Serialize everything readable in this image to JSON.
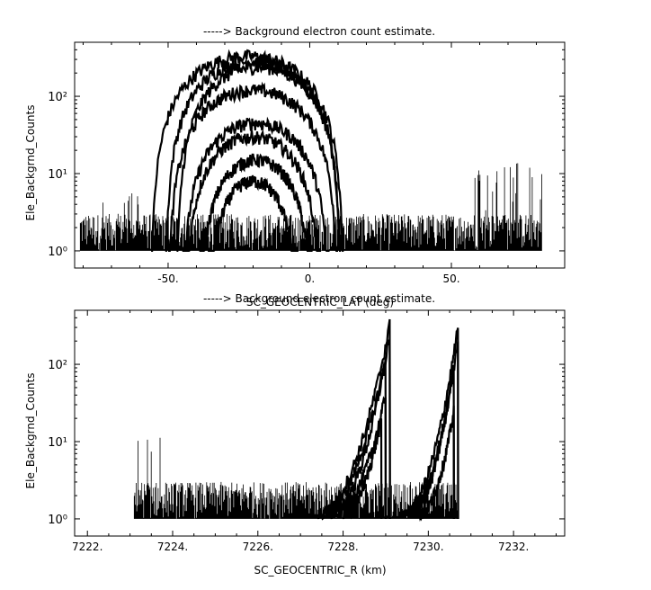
{
  "chart_data": [
    {
      "type": "line",
      "title": "-----> Background electron count estimate.",
      "xlabel": "SC_GEOCENTRIC_LAT (deg)",
      "ylabel": "Ele_Backgrnd_Counts",
      "xlim": [
        -83,
        90
      ],
      "ylim": [
        0.6,
        500
      ],
      "yscale": "log",
      "xticks": [
        -50,
        0,
        50
      ],
      "xtick_labels": [
        "-50.",
        "0.",
        "50."
      ],
      "yticks": [
        1,
        10,
        100
      ],
      "ytick_labels": [
        "10⁰",
        "10¹",
        "10²"
      ],
      "noise_x_range": [
        -81,
        82
      ],
      "noise_floor": [
        1,
        3
      ],
      "noise_bursts": [
        {
          "x": [
            -81,
            -60
          ],
          "peak": 6
        },
        {
          "x": [
            57,
            82
          ],
          "peak": 15
        }
      ],
      "series": [
        {
          "center": -22,
          "peak": 330,
          "half_width": 34
        },
        {
          "center": -20,
          "peak": 280,
          "half_width": 31
        },
        {
          "center": -18,
          "peak": 240,
          "half_width": 29
        },
        {
          "center": -20,
          "peak": 120,
          "half_width": 30
        },
        {
          "center": -19,
          "peak": 45,
          "half_width": 26
        },
        {
          "center": -20,
          "peak": 30,
          "half_width": 24
        },
        {
          "center": -19,
          "peak": 15,
          "half_width": 20
        },
        {
          "center": -20,
          "peak": 8,
          "half_width": 16
        }
      ]
    },
    {
      "type": "line",
      "title": "-----> Background electron count estimate.",
      "xlabel": "SC_GEOCENTRIC_R (km)",
      "ylabel": "Ele_Backgrnd_Counts",
      "xlim": [
        7221.7,
        7233.2
      ],
      "ylim": [
        0.6,
        500
      ],
      "yscale": "log",
      "xticks": [
        7222,
        7224,
        7226,
        7228,
        7230,
        7232
      ],
      "xtick_labels": [
        "7222.",
        "7224.",
        "7226.",
        "7228.",
        "7230.",
        "7232."
      ],
      "yticks": [
        1,
        10,
        100
      ],
      "ytick_labels": [
        "10⁰",
        "10¹",
        "10²"
      ],
      "noise_x_range": [
        7223.1,
        7230.7
      ],
      "noise_floor": [
        1,
        3
      ],
      "noise_bursts": [
        {
          "x": [
            7223.1,
            7223.8
          ],
          "peak": 14
        }
      ],
      "series": [
        {
          "start": 7227.4,
          "end": 7229.1,
          "peak": 340
        },
        {
          "start": 7227.5,
          "end": 7229.1,
          "peak": 230
        },
        {
          "start": 7227.7,
          "end": 7229.0,
          "peak": 120
        },
        {
          "start": 7227.8,
          "end": 7229.0,
          "peak": 40
        },
        {
          "start": 7228.0,
          "end": 7228.9,
          "peak": 20
        },
        {
          "start": 7229.4,
          "end": 7230.7,
          "peak": 310
        },
        {
          "start": 7229.5,
          "end": 7230.7,
          "peak": 200
        },
        {
          "start": 7229.6,
          "end": 7230.6,
          "peak": 100
        },
        {
          "start": 7229.8,
          "end": 7230.6,
          "peak": 25
        }
      ]
    }
  ]
}
